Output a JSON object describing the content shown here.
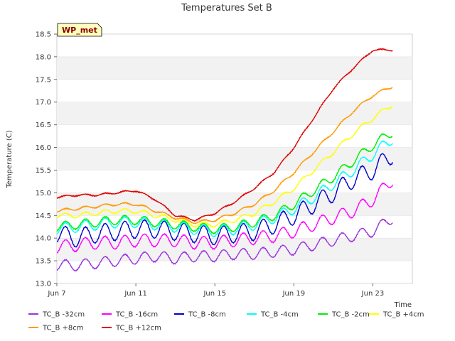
{
  "chart_data": {
    "type": "line",
    "title": "Temperatures Set B",
    "xlabel": "Time",
    "ylabel": "Temperature (C)",
    "site_label": "WP_met",
    "xlim": [
      "2024-06-07",
      "2024-06-25"
    ],
    "ylim": [
      13.0,
      18.5
    ],
    "x_ticks": [
      {
        "date": "2024-06-07",
        "label": "Jun 7"
      },
      {
        "date": "2024-06-11",
        "label": "Jun 11"
      },
      {
        "date": "2024-06-15",
        "label": "Jun 15"
      },
      {
        "date": "2024-06-19",
        "label": "Jun 19"
      },
      {
        "date": "2024-06-23",
        "label": "Jun 23"
      }
    ],
    "y_ticks": [
      "13.0",
      "13.5",
      "14.0",
      "14.5",
      "15.0",
      "15.5",
      "16.0",
      "16.5",
      "17.0",
      "17.5",
      "18.0",
      "18.5"
    ],
    "grid": "horizontal bands",
    "legend_position": "bottom",
    "x": [
      "2024-06-07",
      "2024-06-08",
      "2024-06-09",
      "2024-06-10",
      "2024-06-11",
      "2024-06-12",
      "2024-06-13",
      "2024-06-14",
      "2024-06-15",
      "2024-06-16",
      "2024-06-17",
      "2024-06-18",
      "2024-06-19",
      "2024-06-20",
      "2024-06-21",
      "2024-06-22",
      "2024-06-23",
      "2024-06-24"
    ],
    "series": [
      {
        "name": "TC_B -32cm",
        "color": "#9933dd",
        "values": [
          13.4,
          13.4,
          13.45,
          13.5,
          13.55,
          13.6,
          13.55,
          13.6,
          13.6,
          13.65,
          13.65,
          13.7,
          13.75,
          13.85,
          13.95,
          14.05,
          14.15,
          14.45
        ]
      },
      {
        "name": "TC_B -16cm",
        "color": "#ff00ff",
        "values": [
          13.8,
          13.85,
          13.9,
          13.9,
          13.95,
          13.95,
          13.95,
          13.9,
          13.9,
          13.95,
          14.0,
          14.05,
          14.15,
          14.3,
          14.45,
          14.6,
          14.85,
          15.3
        ]
      },
      {
        "name": "TC_B -8cm",
        "color": "#0000cc",
        "values": [
          14.1,
          14.0,
          14.1,
          14.15,
          14.2,
          14.2,
          14.15,
          14.1,
          14.05,
          14.1,
          14.15,
          14.3,
          14.5,
          14.75,
          15.0,
          15.3,
          15.5,
          15.85
        ]
      },
      {
        "name": "TC_B -4cm",
        "color": "#00ffff",
        "values": [
          14.2,
          14.25,
          14.3,
          14.35,
          14.35,
          14.3,
          14.25,
          14.2,
          14.15,
          14.2,
          14.3,
          14.45,
          14.65,
          14.9,
          15.2,
          15.5,
          15.85,
          16.2
        ]
      },
      {
        "name": "TC_B -2cm",
        "color": "#00ee00",
        "values": [
          14.25,
          14.3,
          14.35,
          14.4,
          14.4,
          14.35,
          14.3,
          14.25,
          14.2,
          14.25,
          14.35,
          14.5,
          14.75,
          15.05,
          15.35,
          15.7,
          16.05,
          16.35
        ]
      },
      {
        "name": "TC_B +4cm",
        "color": "#ffff00",
        "values": [
          14.5,
          14.5,
          14.55,
          14.6,
          14.6,
          14.5,
          14.4,
          14.3,
          14.3,
          14.4,
          14.55,
          14.8,
          15.1,
          15.5,
          15.9,
          16.3,
          16.65,
          16.95
        ]
      },
      {
        "name": "TC_B +8cm",
        "color": "#ff9900",
        "values": [
          14.6,
          14.65,
          14.7,
          14.75,
          14.75,
          14.6,
          14.45,
          14.35,
          14.4,
          14.55,
          14.75,
          15.05,
          15.45,
          15.9,
          16.35,
          16.8,
          17.15,
          17.35
        ]
      },
      {
        "name": "TC_B +12cm",
        "color": "#dd0000",
        "values": [
          14.9,
          14.95,
          14.95,
          15.0,
          15.05,
          14.85,
          14.5,
          14.4,
          14.55,
          14.8,
          15.1,
          15.45,
          16.0,
          16.65,
          17.3,
          17.75,
          18.15,
          18.15
        ]
      }
    ]
  }
}
